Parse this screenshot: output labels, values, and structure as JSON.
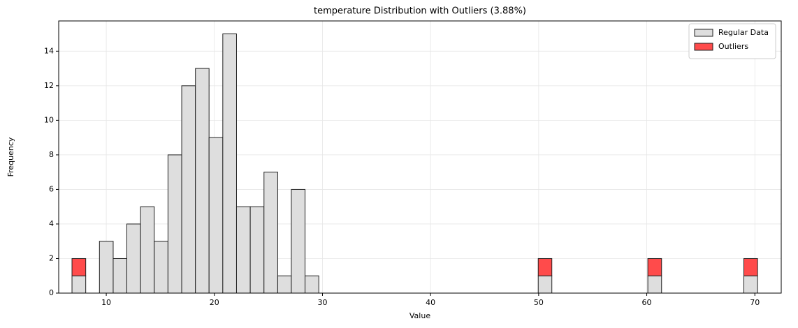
{
  "chart_data": {
    "type": "histogram",
    "title": "temperature Distribution with Outliers (3.88%)",
    "x_label": "Value",
    "y_label": "Frequency",
    "bins": [
      6.83,
      8.1,
      9.37,
      10.64,
      11.9,
      13.17,
      14.44,
      15.71,
      16.98,
      18.25,
      19.51,
      20.78,
      22.05,
      23.32,
      24.59,
      25.86,
      27.12,
      28.39,
      29.66,
      30.93,
      32.2,
      33.47,
      34.73,
      36.0,
      37.27,
      38.54,
      39.81,
      41.08,
      42.34,
      43.61,
      44.88,
      46.15,
      47.42,
      48.69,
      49.96,
      51.22,
      52.49,
      53.76,
      55.03,
      56.3,
      57.57,
      58.83,
      60.1,
      61.37,
      62.64,
      63.91,
      65.18,
      66.44,
      67.71,
      68.98,
      70.25
    ],
    "series": [
      {
        "name": "Regular Data",
        "color": "#dedede",
        "values": [
          1,
          0,
          3,
          2,
          4,
          5,
          3,
          8,
          12,
          13,
          9,
          15,
          5,
          5,
          7,
          1,
          6,
          1,
          0,
          0,
          0,
          0,
          0,
          0,
          0,
          0,
          0,
          0,
          0,
          0,
          0,
          0,
          0,
          0,
          1,
          0,
          0,
          0,
          0,
          0,
          0,
          0,
          1,
          0,
          0,
          0,
          0,
          0,
          0,
          1
        ]
      },
      {
        "name": "Outliers",
        "color": "#ff4b4b",
        "values": [
          1,
          0,
          0,
          0,
          0,
          0,
          0,
          0,
          0,
          0,
          0,
          0,
          0,
          0,
          0,
          0,
          0,
          0,
          0,
          0,
          0,
          0,
          0,
          0,
          0,
          0,
          0,
          0,
          0,
          0,
          0,
          0,
          0,
          0,
          1,
          0,
          0,
          0,
          0,
          0,
          0,
          0,
          1,
          0,
          0,
          0,
          0,
          0,
          0,
          1
        ]
      }
    ],
    "stacked": true,
    "xlim": [
      5.6,
      72.44
    ],
    "xticks": [
      10,
      20,
      30,
      40,
      50,
      60,
      70
    ],
    "ylim": [
      0,
      15.75
    ],
    "yticks": [
      0,
      2,
      4,
      6,
      8,
      10,
      12,
      14
    ],
    "grid": true,
    "legend": "upper right"
  }
}
